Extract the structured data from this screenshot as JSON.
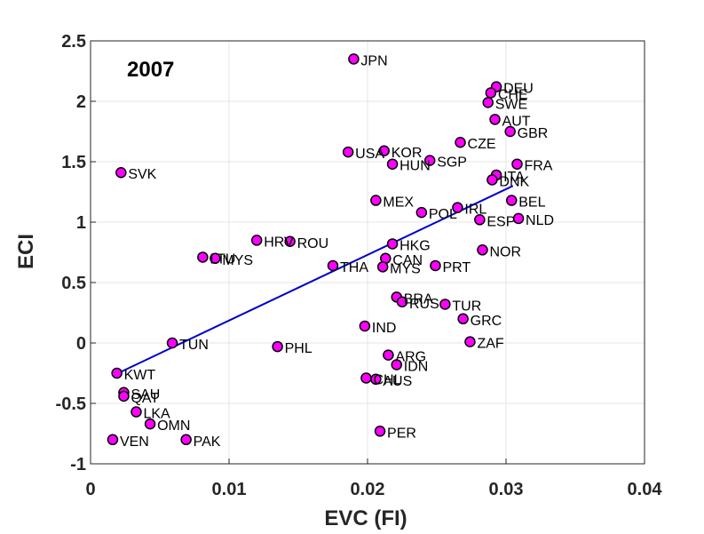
{
  "chart_data": {
    "type": "scatter",
    "title": "2007",
    "xlabel": "EVC (FI)",
    "ylabel": "ECI",
    "xlim": [
      0,
      0.04
    ],
    "ylim": [
      -1,
      2.5
    ],
    "xticks": [
      0,
      0.01,
      0.02,
      0.03,
      0.04
    ],
    "xtick_labels": [
      "0",
      "0.01",
      "0.02",
      "0.03",
      "0.04"
    ],
    "yticks": [
      -1,
      -0.5,
      0,
      0.5,
      1,
      1.5,
      2,
      2.5
    ],
    "ytick_labels": [
      "-1",
      "-0.5",
      "0",
      "0.5",
      "1",
      "1.5",
      "2",
      "2.5"
    ],
    "grid": true,
    "marker_color": "#ff00ff",
    "marker_edge": "#000000",
    "fit_color": "#0000cc",
    "fit_line": {
      "x": [
        0.0018,
        0.0305
      ],
      "y": [
        -0.26,
        1.3
      ]
    },
    "points": [
      {
        "label": "JPN",
        "x": 0.019,
        "y": 2.35
      },
      {
        "label": "DEU",
        "x": 0.0293,
        "y": 2.12
      },
      {
        "label": "CHE",
        "x": 0.0289,
        "y": 2.07
      },
      {
        "label": "SWE",
        "x": 0.0287,
        "y": 1.99
      },
      {
        "label": "AUT",
        "x": 0.0292,
        "y": 1.85
      },
      {
        "label": "GBR",
        "x": 0.0303,
        "y": 1.75
      },
      {
        "label": "CZE",
        "x": 0.0267,
        "y": 1.66
      },
      {
        "label": "USA",
        "x": 0.0186,
        "y": 1.58
      },
      {
        "label": "KOR",
        "x": 0.0212,
        "y": 1.59
      },
      {
        "label": "SGP",
        "x": 0.0245,
        "y": 1.51
      },
      {
        "label": "HUN",
        "x": 0.0218,
        "y": 1.48
      },
      {
        "label": "FRA",
        "x": 0.0308,
        "y": 1.48
      },
      {
        "label": "SVK",
        "x": 0.0022,
        "y": 1.41
      },
      {
        "label": "ITA",
        "x": 0.0293,
        "y": 1.39
      },
      {
        "label": "DNK",
        "x": 0.029,
        "y": 1.35
      },
      {
        "label": "BEL",
        "x": 0.0304,
        "y": 1.18
      },
      {
        "label": "MEX",
        "x": 0.0206,
        "y": 1.18
      },
      {
        "label": "IRL",
        "x": 0.0265,
        "y": 1.12
      },
      {
        "label": "POL",
        "x": 0.0239,
        "y": 1.08
      },
      {
        "label": "ESP",
        "x": 0.0281,
        "y": 1.02
      },
      {
        "label": "NLD",
        "x": 0.0309,
        "y": 1.03
      },
      {
        "label": "HRV",
        "x": 0.012,
        "y": 0.85
      },
      {
        "label": "ROU",
        "x": 0.0144,
        "y": 0.84
      },
      {
        "label": "HKG",
        "x": 0.0218,
        "y": 0.82
      },
      {
        "label": "NOR",
        "x": 0.0283,
        "y": 0.77
      },
      {
        "label": "LTU",
        "x": 0.0081,
        "y": 0.71
      },
      {
        "label": "MYS",
        "x": 0.009,
        "y": 0.7
      },
      {
        "label": "CAN",
        "x": 0.0213,
        "y": 0.7
      },
      {
        "label": "THA",
        "x": 0.0175,
        "y": 0.64
      },
      {
        "label": "MYS",
        "x": 0.0211,
        "y": 0.63
      },
      {
        "label": "PRT",
        "x": 0.0249,
        "y": 0.64
      },
      {
        "label": "BRA",
        "x": 0.0221,
        "y": 0.38
      },
      {
        "label": "RUS",
        "x": 0.0225,
        "y": 0.34
      },
      {
        "label": "TUR",
        "x": 0.0256,
        "y": 0.32
      },
      {
        "label": "GRC",
        "x": 0.0269,
        "y": 0.2
      },
      {
        "label": "IND",
        "x": 0.0198,
        "y": 0.14
      },
      {
        "label": "ZAF",
        "x": 0.0274,
        "y": 0.01
      },
      {
        "label": "TUN",
        "x": 0.0059,
        "y": 0.0
      },
      {
        "label": "PHL",
        "x": 0.0135,
        "y": -0.03
      },
      {
        "label": "ARG",
        "x": 0.0215,
        "y": -0.1
      },
      {
        "label": "IDN",
        "x": 0.0221,
        "y": -0.18
      },
      {
        "label": "KWT",
        "x": 0.0019,
        "y": -0.25
      },
      {
        "label": "CHL",
        "x": 0.0199,
        "y": -0.29
      },
      {
        "label": "AUS",
        "x": 0.0206,
        "y": -0.3
      },
      {
        "label": "SAU",
        "x": 0.0024,
        "y": -0.41
      },
      {
        "label": "QAT",
        "x": 0.0024,
        "y": -0.44
      },
      {
        "label": "LKA",
        "x": 0.0033,
        "y": -0.57
      },
      {
        "label": "OMN",
        "x": 0.0043,
        "y": -0.67
      },
      {
        "label": "PER",
        "x": 0.0209,
        "y": -0.73
      },
      {
        "label": "VEN",
        "x": 0.0016,
        "y": -0.8
      },
      {
        "label": "PAK",
        "x": 0.0069,
        "y": -0.8
      }
    ]
  }
}
